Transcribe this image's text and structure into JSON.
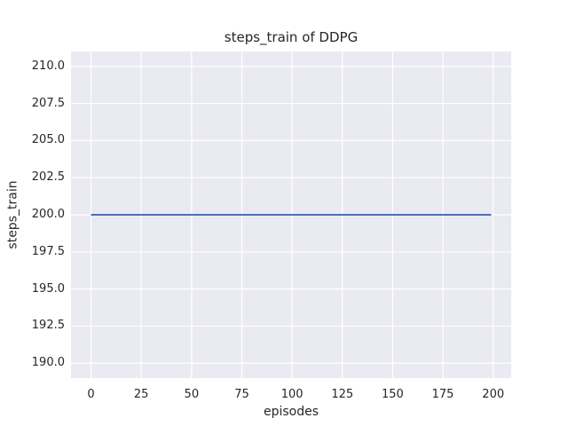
{
  "figure": {
    "background": "#ffffff"
  },
  "chart_data": {
    "type": "line",
    "title": "steps_train of DDPG",
    "xlabel": "episodes",
    "ylabel": "steps_train",
    "xlim": [
      -9.95,
      208.95
    ],
    "ylim": [
      189.0,
      211.0
    ],
    "xticks": [
      0,
      25,
      50,
      75,
      100,
      125,
      150,
      175,
      200
    ],
    "xtick_labels": [
      "0",
      "25",
      "50",
      "75",
      "100",
      "125",
      "150",
      "175",
      "200"
    ],
    "yticks": [
      190.0,
      192.5,
      195.0,
      197.5,
      200.0,
      202.5,
      205.0,
      207.5,
      210.0
    ],
    "ytick_labels": [
      "190.0",
      "192.5",
      "195.0",
      "197.5",
      "200.0",
      "202.5",
      "205.0",
      "207.5",
      "210.0"
    ],
    "grid": true,
    "legend": false,
    "series": [
      {
        "name": "steps_train",
        "color": "#4c72b0",
        "x": [
          0,
          199
        ],
        "y": [
          200,
          200
        ]
      }
    ],
    "style": {
      "axes_background": "#eaeaf2",
      "grid_color": "#ffffff",
      "text_color": "#262626",
      "line_width": 2,
      "grid_width": 1.2
    }
  }
}
